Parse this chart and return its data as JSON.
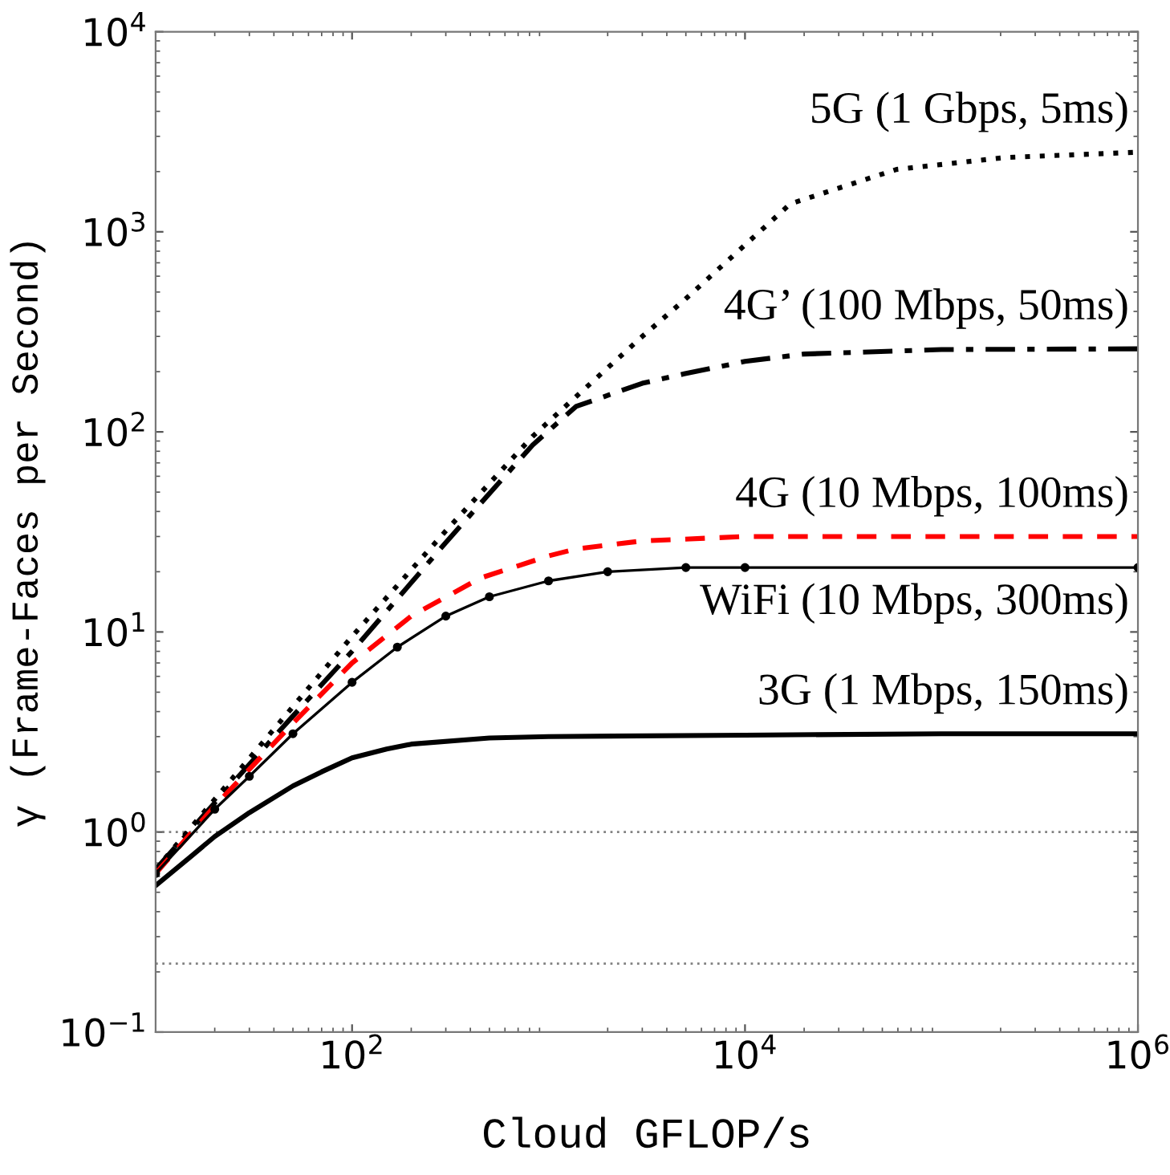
{
  "chart_data": {
    "type": "line",
    "xlabel": "Cloud GFLOP/s",
    "ylabel": "γ (Frame-Faces per Second)",
    "log": "xy",
    "xlim": [
      10,
      1000000
    ],
    "ylim": [
      0.1,
      10000
    ],
    "xticks": [
      {
        "value": 100,
        "label": "10$^{2}$"
      },
      {
        "value": 10000,
        "label": "10$^{4}$"
      },
      {
        "value": 1000000,
        "label": "10$^{6}$"
      }
    ],
    "yticks": [
      {
        "value": 0.1,
        "label": "10$^{−1}$"
      },
      {
        "value": 1,
        "label": "10$^{0}$"
      },
      {
        "value": 10,
        "label": "10$^{1}$"
      },
      {
        "value": 100,
        "label": "10$^{2}$"
      },
      {
        "value": 1000,
        "label": "10$^{3}$"
      },
      {
        "value": 10000,
        "label": "10$^{4}$"
      }
    ],
    "grid": false,
    "legend": false,
    "series": [
      {
        "name": "5G (1 Gbps, 5ms)",
        "color": "#000000",
        "line_style": "dotted",
        "marker": "none",
        "x": [
          10,
          100,
          300,
          830,
          1380,
          3000,
          4900,
          17000,
          59000,
          210000,
          1000000
        ],
        "values": [
          0.65,
          9.5,
          32,
          95,
          150,
          300,
          455,
          1380,
          2050,
          2350,
          2500
        ]
      },
      {
        "name": "4G’ (100 Mbps, 50ms)",
        "color": "#000000",
        "line_style": "dashdot",
        "marker": "none",
        "x": [
          10,
          20,
          50,
          100,
          300,
          830,
          1380,
          3000,
          4900,
          10000,
          20000,
          100000,
          1000000
        ],
        "values": [
          0.65,
          1.4,
          3.8,
          8,
          28,
          86,
          134,
          175,
          195,
          225,
          245,
          258,
          260
        ]
      },
      {
        "name": "4G (10 Mbps, 100ms)",
        "color": "#ff0000",
        "line_style": "dashed",
        "marker": "none",
        "x": [
          10,
          20,
          50,
          100,
          200,
          450,
          1000,
          1380,
          3000,
          10000,
          1000000
        ],
        "values": [
          0.62,
          1.35,
          3.5,
          7,
          12,
          18.6,
          24,
          26,
          28.5,
          30,
          30
        ]
      },
      {
        "name": "WiFi (10 Mbps, 300ms)",
        "color": "#000000",
        "line_style": "solid",
        "marker": "circle",
        "x": [
          10,
          20,
          30,
          50,
          100,
          170,
          300,
          500,
          1000,
          2000,
          5000,
          10000,
          1000000
        ],
        "values": [
          0.62,
          1.3,
          1.9,
          3.1,
          5.6,
          8.4,
          12,
          15,
          18,
          20,
          21,
          21,
          21
        ]
      },
      {
        "name": "3G (1 Mbps, 150ms)",
        "color": "#000000",
        "line_style": "solid",
        "marker": "none",
        "x": [
          10,
          15,
          20,
          30,
          50,
          70,
          100,
          150,
          200,
          500,
          1000,
          10000,
          100000,
          1000000
        ],
        "values": [
          0.54,
          0.75,
          0.95,
          1.25,
          1.7,
          2.0,
          2.35,
          2.6,
          2.75,
          2.95,
          3.0,
          3.05,
          3.1,
          3.1
        ]
      }
    ],
    "ref_lines": [
      {
        "axis": "y",
        "value": 1,
        "color": "#808080",
        "line_style": "dotted"
      },
      {
        "axis": "y",
        "value": 0.22,
        "color": "#808080",
        "line_style": "dotted"
      }
    ]
  }
}
